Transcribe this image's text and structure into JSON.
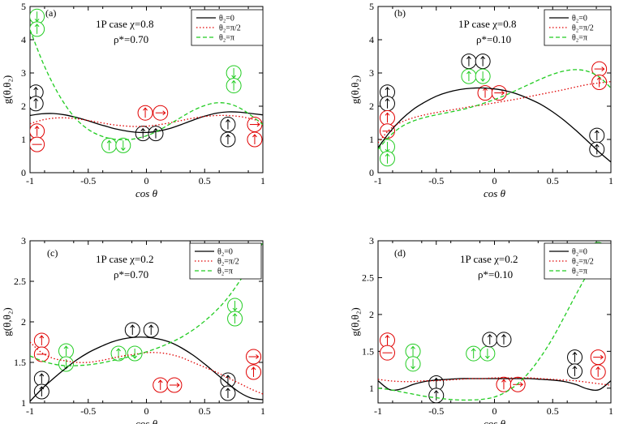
{
  "colors": {
    "black": "#000000",
    "red": "#e00000",
    "green": "#22cc22"
  },
  "chart_data": [
    {
      "id": "a",
      "type": "line",
      "panel_label": "(a)",
      "annotation": [
        "1P case χ=0.8",
        "ρ*=0.70"
      ],
      "xlabel": "cos θ",
      "ylabel": "g(θ,θ₂)",
      "xlim": [
        -1,
        1
      ],
      "ylim": [
        0,
        5
      ],
      "xticks": [
        "-1",
        "-0.5",
        "0",
        "0.5",
        "1"
      ],
      "yticks": [
        "0",
        "1",
        "2",
        "3",
        "4",
        "5"
      ],
      "legend": [
        "θ₂=0",
        "θ₂=π/2",
        "θ₂=π"
      ],
      "x": [
        -1,
        -0.9,
        -0.8,
        -0.7,
        -0.6,
        -0.5,
        -0.4,
        -0.3,
        -0.2,
        -0.1,
        0,
        0.1,
        0.2,
        0.3,
        0.4,
        0.5,
        0.6,
        0.7,
        0.8,
        0.9,
        1
      ],
      "series": [
        {
          "name": "θ₂=0",
          "style": "solid",
          "color": "black",
          "values": [
            1.72,
            1.77,
            1.78,
            1.74,
            1.66,
            1.56,
            1.45,
            1.35,
            1.27,
            1.22,
            1.21,
            1.25,
            1.33,
            1.45,
            1.58,
            1.7,
            1.79,
            1.83,
            1.82,
            1.78,
            1.74
          ]
        },
        {
          "name": "θ₂=π/2",
          "style": "dotted",
          "color": "red",
          "values": [
            1.47,
            1.58,
            1.64,
            1.65,
            1.62,
            1.57,
            1.51,
            1.45,
            1.41,
            1.39,
            1.4,
            1.44,
            1.5,
            1.57,
            1.64,
            1.69,
            1.72,
            1.72,
            1.69,
            1.62,
            1.52
          ]
        },
        {
          "name": "θ₂=π",
          "style": "dashed",
          "color": "green",
          "values": [
            4.3,
            3.4,
            2.65,
            2.05,
            1.6,
            1.3,
            1.12,
            1.02,
            0.99,
            1.02,
            1.11,
            1.26,
            1.46,
            1.67,
            1.87,
            2.02,
            2.1,
            2.08,
            1.95,
            1.72,
            1.45
          ]
        }
      ]
    },
    {
      "id": "b",
      "type": "line",
      "panel_label": "(b)",
      "annotation": [
        "1P case χ=0.8",
        "ρ*=0.10"
      ],
      "xlabel": "cos θ",
      "ylabel": "g(θ,θ₂)",
      "xlim": [
        -1,
        1
      ],
      "ylim": [
        0,
        5
      ],
      "xticks": [
        "-1",
        "-0.5",
        "0",
        "0.5",
        "1"
      ],
      "yticks": [
        "0",
        "1",
        "2",
        "3",
        "4",
        "5"
      ],
      "legend": [
        "θ₂=0",
        "θ₂=π/2",
        "θ₂=π"
      ],
      "x": [
        -1,
        -0.9,
        -0.8,
        -0.7,
        -0.6,
        -0.5,
        -0.4,
        -0.3,
        -0.2,
        -0.1,
        0,
        0.1,
        0.2,
        0.3,
        0.4,
        0.5,
        0.6,
        0.7,
        0.8,
        0.9,
        1
      ],
      "series": [
        {
          "name": "θ₂=0",
          "style": "solid",
          "color": "black",
          "values": [
            0.75,
            1.22,
            1.6,
            1.9,
            2.12,
            2.3,
            2.42,
            2.5,
            2.54,
            2.55,
            2.52,
            2.46,
            2.36,
            2.22,
            2.05,
            1.83,
            1.57,
            1.27,
            0.95,
            0.62,
            0.32
          ]
        },
        {
          "name": "θ₂=π/2",
          "style": "dotted",
          "color": "red",
          "values": [
            0.9,
            1.3,
            1.52,
            1.65,
            1.74,
            1.81,
            1.87,
            1.93,
            1.99,
            2.04,
            2.1,
            2.16,
            2.22,
            2.29,
            2.36,
            2.43,
            2.5,
            2.58,
            2.65,
            2.7,
            2.74
          ]
        },
        {
          "name": "θ₂=π",
          "style": "dashed",
          "color": "green",
          "values": [
            0.7,
            1.1,
            1.38,
            1.55,
            1.66,
            1.74,
            1.81,
            1.88,
            1.97,
            2.08,
            2.2,
            2.34,
            2.5,
            2.66,
            2.82,
            2.96,
            3.06,
            3.1,
            3.05,
            2.88,
            2.55
          ]
        }
      ]
    },
    {
      "id": "c",
      "type": "line",
      "panel_label": "(c)",
      "annotation": [
        "1P case χ=0.2",
        "ρ*=0.70"
      ],
      "xlabel": "cos θ",
      "ylabel": "g(θ,θ₂)",
      "xlim": [
        -1,
        1
      ],
      "ylim": [
        1,
        3
      ],
      "xticks": [
        "-1",
        "-0.5",
        "0",
        "0.5",
        "1"
      ],
      "yticks": [
        "1",
        "1.5",
        "2",
        "2.5",
        "3"
      ],
      "legend": [
        "θ₂=0",
        "θ₂=π/2",
        "θ₂=π"
      ],
      "x": [
        -1,
        -0.9,
        -0.8,
        -0.7,
        -0.6,
        -0.5,
        -0.4,
        -0.3,
        -0.2,
        -0.1,
        0,
        0.1,
        0.2,
        0.3,
        0.4,
        0.5,
        0.6,
        0.7,
        0.8,
        0.9,
        1
      ],
      "series": [
        {
          "name": "θ₂=0",
          "style": "solid",
          "color": "black",
          "values": [
            1.02,
            1.17,
            1.3,
            1.42,
            1.53,
            1.62,
            1.69,
            1.75,
            1.79,
            1.81,
            1.81,
            1.79,
            1.75,
            1.68,
            1.59,
            1.48,
            1.36,
            1.24,
            1.13,
            1.06,
            1.04
          ]
        },
        {
          "name": "θ₂=π/2",
          "style": "dotted",
          "color": "red",
          "values": [
            1.75,
            1.62,
            1.55,
            1.52,
            1.5,
            1.5,
            1.52,
            1.55,
            1.58,
            1.6,
            1.62,
            1.62,
            1.6,
            1.56,
            1.5,
            1.44,
            1.38,
            1.31,
            1.24,
            1.17,
            1.11
          ]
        },
        {
          "name": "θ₂=π",
          "style": "dashed",
          "color": "green",
          "values": [
            1.58,
            1.52,
            1.48,
            1.46,
            1.46,
            1.47,
            1.49,
            1.52,
            1.55,
            1.59,
            1.63,
            1.68,
            1.74,
            1.81,
            1.9,
            2.01,
            2.14,
            2.3,
            2.5,
            2.72,
            2.98
          ]
        }
      ]
    },
    {
      "id": "d",
      "type": "line",
      "panel_label": "(d)",
      "annotation": [
        "1P case χ=0.2",
        "ρ*=0.10"
      ],
      "xlabel": "cos θ",
      "ylabel": "g(θ,θ₂)",
      "xlim": [
        -1,
        1
      ],
      "ylim": [
        0.8,
        3
      ],
      "xticks": [
        "-1",
        "-0.5",
        "0",
        "0.5",
        "1"
      ],
      "yticks": [
        "1",
        "1.5",
        "2",
        "2.5",
        "3"
      ],
      "legend": [
        "θ₂=0",
        "θ₂=π/2",
        "θ₂=π"
      ],
      "x": [
        -1,
        -0.9,
        -0.8,
        -0.7,
        -0.6,
        -0.5,
        -0.4,
        -0.3,
        -0.2,
        -0.1,
        0,
        0.1,
        0.2,
        0.3,
        0.4,
        0.5,
        0.6,
        0.7,
        0.8,
        0.9,
        1
      ],
      "series": [
        {
          "name": "θ₂=0",
          "style": "solid",
          "color": "black",
          "values": [
            1.1,
            0.98,
            0.99,
            1.05,
            1.09,
            1.11,
            1.12,
            1.13,
            1.13,
            1.13,
            1.13,
            1.13,
            1.13,
            1.13,
            1.12,
            1.11,
            1.09,
            1.05,
            0.99,
            0.98,
            1.1
          ]
        },
        {
          "name": "θ₂=π/2",
          "style": "dotted",
          "color": "red",
          "values": [
            1.12,
            1.1,
            1.09,
            1.09,
            1.1,
            1.1,
            1.11,
            1.12,
            1.13,
            1.13,
            1.14,
            1.14,
            1.14,
            1.14,
            1.13,
            1.12,
            1.11,
            1.1,
            1.08,
            1.06,
            1.04
          ]
        },
        {
          "name": "θ₂=π",
          "style": "dashed",
          "color": "green",
          "values": [
            1.0,
            0.98,
            0.95,
            0.92,
            0.89,
            0.87,
            0.85,
            0.84,
            0.84,
            0.85,
            0.88,
            0.95,
            1.06,
            1.22,
            1.43,
            1.68,
            1.97,
            2.27,
            2.55,
            2.78,
            2.95
          ]
        }
      ]
    }
  ]
}
